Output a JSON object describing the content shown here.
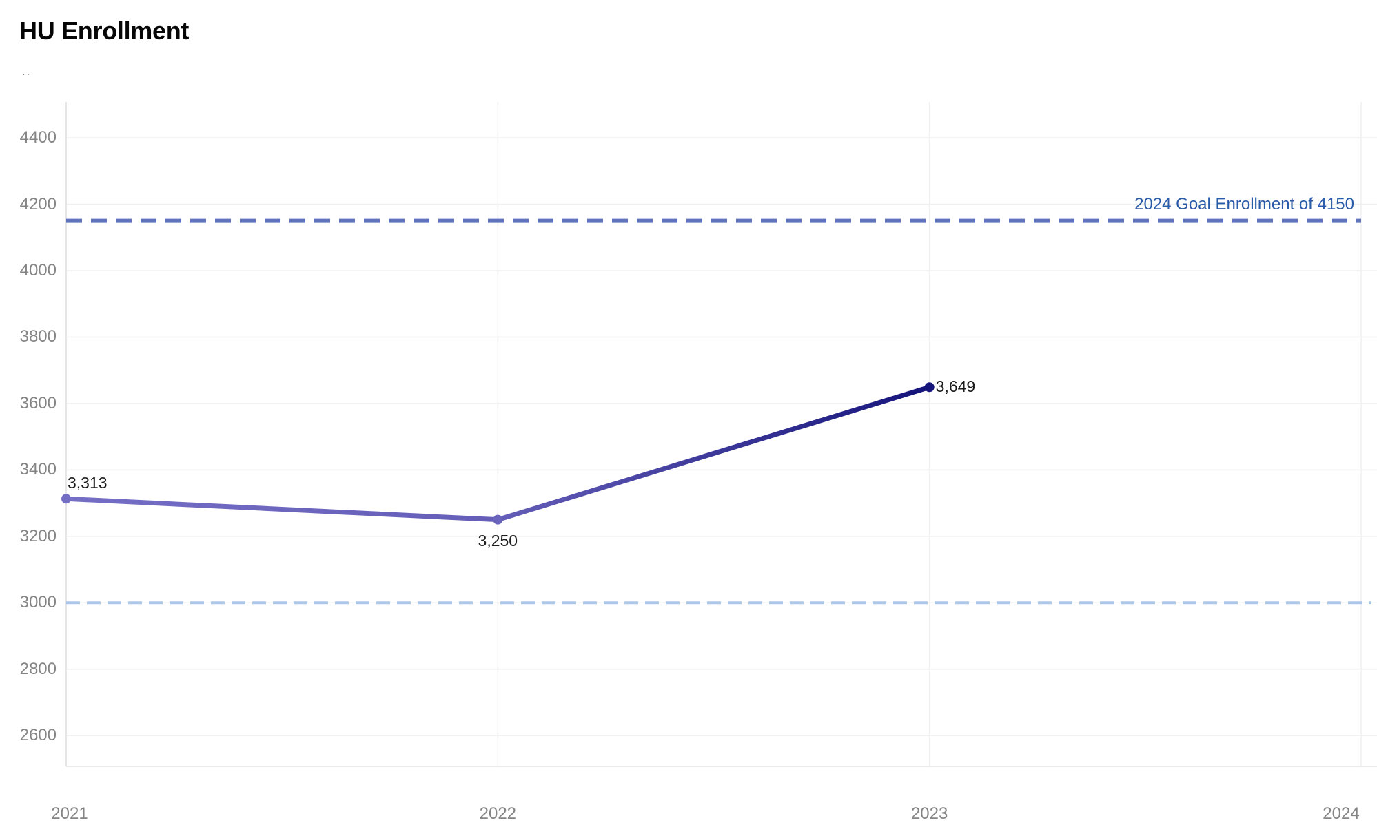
{
  "header": {
    "title": "HU Enrollment",
    "subtitle": ".."
  },
  "colors": {
    "background": "#ffffff",
    "title_text": "#060606",
    "subtitle_text": "#4d4d4d",
    "gridline": "#f0f0f0",
    "axis_line": "#e3e3e3",
    "tick_label": "#858585",
    "data_label": "#1c1c1c",
    "line_gradient_start": "#756ec5",
    "line_gradient_mid": "#655eb8",
    "line_gradient_end": "#15147b",
    "goal_line": "#5f73bd",
    "goal_label": "#2a5ba8",
    "reference_line": "#abc7e8"
  },
  "chart_data": {
    "type": "line",
    "title": "HU Enrollment",
    "x": [
      2021,
      2022,
      2023
    ],
    "values": [
      3313,
      3250,
      3649
    ],
    "point_labels": [
      "3,313",
      "3,250",
      "3,649"
    ],
    "point_label_positions": [
      "above-right",
      "below-center",
      "right"
    ],
    "point_colors": [
      "#756ec5",
      "#6b64bc",
      "#15147b"
    ],
    "x_axis": {
      "ticks": [
        2021,
        2022,
        2023,
        2024
      ],
      "tick_labels": [
        "2021",
        "2022",
        "2023",
        "2024"
      ],
      "range": [
        2021,
        2024
      ]
    },
    "y_axis": {
      "ticks": [
        2600,
        2800,
        3000,
        3200,
        3400,
        3600,
        3800,
        4000,
        4200,
        4400
      ],
      "tick_labels": [
        "2600",
        "2800",
        "3000",
        "3200",
        "3400",
        "3600",
        "3800",
        "4000",
        "4200",
        "4400"
      ],
      "range": [
        2507,
        4508
      ]
    },
    "goal_line": {
      "value": 4150,
      "label": "2024 Goal Enrollment of 4150",
      "style": "dashed"
    },
    "reference_line": {
      "value": 3000,
      "style": "dashed"
    },
    "grid": true,
    "legend": false
  }
}
